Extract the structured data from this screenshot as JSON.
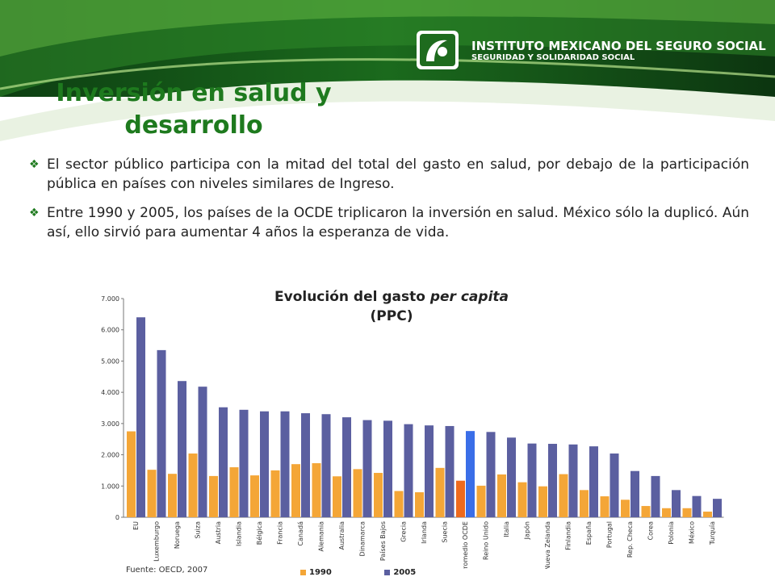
{
  "header": {
    "institution": "INSTITUTO MEXICANO DEL SEGURO SOCIAL",
    "tagline": "SEGURIDAD Y SOLIDARIDAD SOCIAL"
  },
  "slide": {
    "title": "Inversión en salud y desarrollo",
    "bullets": [
      "El sector público participa con la mitad del total del gasto en salud, por debajo de la participación pública en países con niveles similares de Ingreso.",
      "Entre 1990 y 2005, los países de la OCDE triplicaron la inversión en salud. México sólo la duplicó. Aún así, ello sirvió para aumentar 4 años la esperanza de vida."
    ],
    "bullet_icon": "diamond-bullet-icon"
  },
  "chart_title": {
    "part1": "Evolución del gasto",
    "part2": "per capita",
    "part3": "(PPC)"
  },
  "source": "Fuente: OECD, 2007",
  "colors": {
    "green": "#1e7a1e",
    "series_1990": "#f4a637",
    "series_2005": "#5b5fa0",
    "highlight_1990": "#ee6a1e",
    "highlight_2005": "#3a6ee8"
  },
  "chart_data": {
    "type": "bar",
    "title": "",
    "xlabel": "",
    "ylabel": "",
    "ylim": [
      0,
      7000
    ],
    "yticks": [
      "0",
      "1.000",
      "2.000",
      "3.000",
      "4.000",
      "5.000",
      "6.000",
      "7.000"
    ],
    "categories": [
      "EU",
      "Luxemburgo",
      "Noruega",
      "Suiza",
      "Austria",
      "Islandia",
      "Bélgica",
      "Francia",
      "Canadá",
      "Alemania",
      "Australia",
      "Dinamarca",
      "Países Bajos",
      "Grecia",
      "Irlanda",
      "Suecia",
      "Promedio OCDE",
      "Reino Unido",
      "Italia",
      "Japón",
      "Nueva Zelanda",
      "Finlandia",
      "España",
      "Portugal",
      "Rep. Checa",
      "Corea",
      "Polonia",
      "México",
      "Turquía"
    ],
    "highlight_category": "Promedio OCDE",
    "series": [
      {
        "name": "1990",
        "values": [
          2750,
          1520,
          1390,
          2040,
          1320,
          1600,
          1340,
          1500,
          1700,
          1730,
          1310,
          1540,
          1420,
          840,
          800,
          1580,
          1170,
          1010,
          1370,
          1120,
          990,
          1380,
          870,
          670,
          560,
          360,
          290,
          290,
          180
        ]
      },
      {
        "name": "2005",
        "values": [
          6400,
          5350,
          4360,
          4180,
          3520,
          3440,
          3390,
          3390,
          3330,
          3300,
          3200,
          3110,
          3090,
          2980,
          2940,
          2920,
          2760,
          2730,
          2550,
          2360,
          2350,
          2330,
          2270,
          2040,
          1480,
          1320,
          870,
          680,
          590
        ]
      }
    ],
    "legend": {
      "position": "bottom",
      "items": [
        "1990",
        "2005"
      ]
    },
    "grid": false
  }
}
